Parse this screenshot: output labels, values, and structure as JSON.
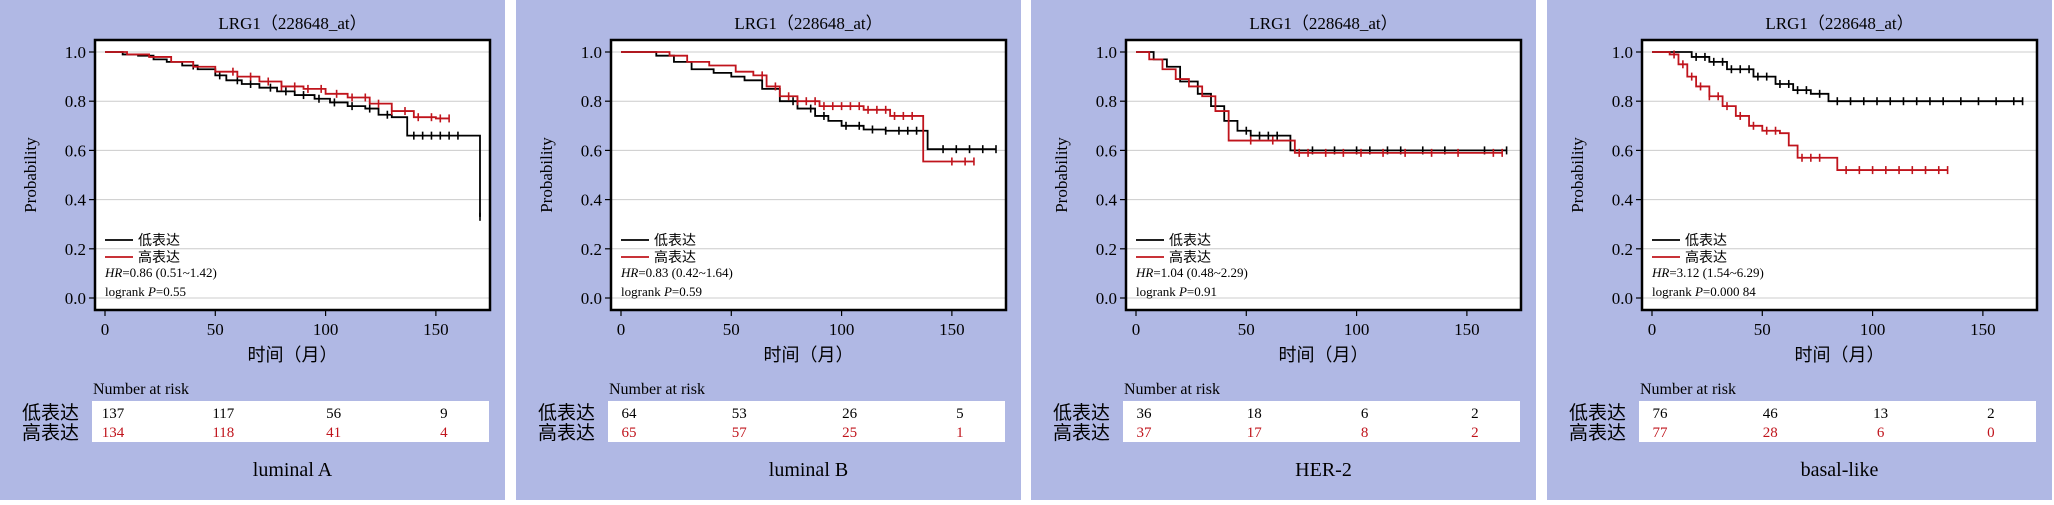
{
  "colors": {
    "panel_bg": "#b0b8e4",
    "low": "#000000",
    "high": "#c0141c",
    "grid": "#cccccc"
  },
  "labels": {
    "ylabel": "Probability",
    "xlabel": "时间（月）",
    "risk_title": "Number at risk",
    "low_group": "低表达",
    "high_group": "高表达",
    "logrank": "logrank"
  },
  "chart_data": [
    {
      "type": "line",
      "title": "LRG1（228648_at）",
      "subtype_label": "luminal A",
      "xlabel": "时间（月）",
      "ylabel": "Probability",
      "xlim": [
        0,
        170
      ],
      "ylim": [
        0,
        1.0
      ],
      "xticks": [
        0,
        50,
        100,
        150
      ],
      "yticks": [
        0.0,
        0.2,
        0.4,
        0.6,
        0.8,
        1.0
      ],
      "grid": true,
      "legend": "bottom-left",
      "stats": {
        "hr_label": "HR",
        "hr_text": "=0.86 (0.51~1.42)",
        "p_label": "P",
        "p_text": "=0.55"
      },
      "risk_times": [
        0,
        50,
        100,
        150
      ],
      "series": [
        {
          "name": "低表达",
          "color": "#000000",
          "points": [
            [
              0,
              1.0
            ],
            [
              8,
              0.99
            ],
            [
              15,
              0.985
            ],
            [
              22,
              0.97
            ],
            [
              28,
              0.96
            ],
            [
              35,
              0.945
            ],
            [
              42,
              0.93
            ],
            [
              50,
              0.905
            ],
            [
              55,
              0.885
            ],
            [
              62,
              0.87
            ],
            [
              70,
              0.855
            ],
            [
              78,
              0.84
            ],
            [
              86,
              0.825
            ],
            [
              95,
              0.81
            ],
            [
              102,
              0.795
            ],
            [
              110,
              0.78
            ],
            [
              118,
              0.77
            ],
            [
              124,
              0.745
            ],
            [
              130,
              0.735
            ],
            [
              137,
              0.66
            ],
            [
              150,
              0.66
            ],
            [
              164,
              0.66
            ],
            [
              170,
              0.66
            ],
            [
              170,
              0.33
            ]
          ],
          "censor_x": [
            40,
            52,
            60,
            66,
            75,
            82,
            90,
            97,
            104,
            112,
            120,
            128,
            140,
            144,
            148,
            152,
            156,
            160,
            170
          ]
        },
        {
          "name": "高表达",
          "color": "#c0141c",
          "points": [
            [
              0,
              1.0
            ],
            [
              10,
              0.99
            ],
            [
              20,
              0.98
            ],
            [
              30,
              0.96
            ],
            [
              40,
              0.94
            ],
            [
              50,
              0.92
            ],
            [
              60,
              0.9
            ],
            [
              70,
              0.88
            ],
            [
              80,
              0.86
            ],
            [
              90,
              0.85
            ],
            [
              100,
              0.83
            ],
            [
              110,
              0.815
            ],
            [
              120,
              0.79
            ],
            [
              130,
              0.76
            ],
            [
              140,
              0.735
            ],
            [
              150,
              0.73
            ],
            [
              156,
              0.73
            ]
          ],
          "censor_x": [
            58,
            66,
            74,
            80,
            86,
            92,
            98,
            105,
            112,
            118,
            124,
            130,
            136,
            142,
            148,
            152,
            156
          ]
        }
      ],
      "at_risk": {
        "low": [
          "137",
          "117",
          "56",
          "9"
        ],
        "high": [
          "134",
          "118",
          "41",
          "4"
        ]
      }
    },
    {
      "type": "line",
      "title": "LRG1（228648_at）",
      "subtype_label": "luminal B",
      "xlabel": "时间（月）",
      "ylabel": "Probability",
      "xlim": [
        0,
        170
      ],
      "ylim": [
        0,
        1.0
      ],
      "xticks": [
        0,
        50,
        100,
        150
      ],
      "yticks": [
        0.0,
        0.2,
        0.4,
        0.6,
        0.8,
        1.0
      ],
      "grid": true,
      "legend": "bottom-left",
      "stats": {
        "hr_label": "HR",
        "hr_text": "=0.83 (0.42~1.64)",
        "p_label": "P",
        "p_text": "=0.59"
      },
      "risk_times": [
        0,
        50,
        100,
        150
      ],
      "series": [
        {
          "name": "低表达",
          "color": "#000000",
          "points": [
            [
              0,
              1.0
            ],
            [
              12,
              1.0
            ],
            [
              16,
              0.985
            ],
            [
              24,
              0.96
            ],
            [
              32,
              0.93
            ],
            [
              42,
              0.915
            ],
            [
              50,
              0.9
            ],
            [
              56,
              0.885
            ],
            [
              64,
              0.85
            ],
            [
              72,
              0.8
            ],
            [
              80,
              0.77
            ],
            [
              88,
              0.74
            ],
            [
              94,
              0.72
            ],
            [
              100,
              0.7
            ],
            [
              110,
              0.685
            ],
            [
              120,
              0.68
            ],
            [
              138,
              0.68
            ],
            [
              139,
              0.605
            ],
            [
              150,
              0.605
            ],
            [
              170,
              0.605
            ]
          ],
          "censor_x": [
            78,
            86,
            92,
            102,
            108,
            114,
            120,
            126,
            130,
            134,
            146,
            152,
            158,
            164,
            170
          ]
        },
        {
          "name": "高表达",
          "color": "#c0141c",
          "points": [
            [
              0,
              1.0
            ],
            [
              18,
              1.0
            ],
            [
              22,
              0.985
            ],
            [
              30,
              0.96
            ],
            [
              40,
              0.945
            ],
            [
              52,
              0.92
            ],
            [
              60,
              0.905
            ],
            [
              66,
              0.86
            ],
            [
              72,
              0.82
            ],
            [
              80,
              0.8
            ],
            [
              90,
              0.78
            ],
            [
              110,
              0.765
            ],
            [
              122,
              0.74
            ],
            [
              136,
              0.74
            ],
            [
              137,
              0.555
            ],
            [
              160,
              0.555
            ]
          ],
          "censor_x": [
            64,
            70,
            76,
            80,
            84,
            88,
            92,
            96,
            100,
            104,
            108,
            112,
            116,
            120,
            124,
            128,
            132,
            150,
            156,
            160
          ]
        }
      ],
      "at_risk": {
        "low": [
          "64",
          "53",
          "26",
          "5"
        ],
        "high": [
          "65",
          "57",
          "25",
          "1"
        ]
      }
    },
    {
      "type": "line",
      "title": "LRG1（228648_at）",
      "subtype_label": "HER-2",
      "xlabel": "时间（月）",
      "ylabel": "Probability",
      "xlim": [
        0,
        170
      ],
      "ylim": [
        0,
        1.0
      ],
      "xticks": [
        0,
        50,
        100,
        150
      ],
      "yticks": [
        0.0,
        0.2,
        0.4,
        0.6,
        0.8,
        1.0
      ],
      "grid": true,
      "legend": "bottom-left",
      "stats": {
        "hr_label": "HR",
        "hr_text": "=1.04 (0.48~2.29)",
        "p_label": "P",
        "p_text": "=0.91"
      },
      "risk_times": [
        0,
        50,
        100,
        150
      ],
      "series": [
        {
          "name": "低表达",
          "color": "#000000",
          "points": [
            [
              0,
              1.0
            ],
            [
              5,
              1.0
            ],
            [
              8,
              0.97
            ],
            [
              14,
              0.94
            ],
            [
              20,
              0.88
            ],
            [
              28,
              0.83
            ],
            [
              34,
              0.78
            ],
            [
              40,
              0.72
            ],
            [
              46,
              0.68
            ],
            [
              52,
              0.66
            ],
            [
              68,
              0.66
            ],
            [
              70,
              0.6
            ],
            [
              168,
              0.6
            ]
          ],
          "censor_x": [
            50,
            56,
            60,
            64,
            80,
            90,
            100,
            106,
            114,
            120,
            130,
            140,
            158,
            168
          ]
        },
        {
          "name": "高表达",
          "color": "#c0141c",
          "points": [
            [
              0,
              1.0
            ],
            [
              6,
              0.97
            ],
            [
              12,
              0.93
            ],
            [
              18,
              0.89
            ],
            [
              24,
              0.86
            ],
            [
              30,
              0.82
            ],
            [
              36,
              0.76
            ],
            [
              42,
              0.64
            ],
            [
              70,
              0.64
            ],
            [
              72,
              0.59
            ],
            [
              166,
              0.59
            ]
          ],
          "censor_x": [
            52,
            62,
            74,
            78,
            86,
            94,
            102,
            112,
            122,
            134,
            146,
            162,
            166
          ]
        }
      ],
      "at_risk": {
        "low": [
          "36",
          "18",
          "6",
          "2"
        ],
        "high": [
          "37",
          "17",
          "8",
          "2"
        ]
      }
    },
    {
      "type": "line",
      "title": "LRG1（228648_at）",
      "subtype_label": "basal-like",
      "xlabel": "时间（月）",
      "ylabel": "Probability",
      "xlim": [
        0,
        170
      ],
      "ylim": [
        0,
        1.0
      ],
      "xticks": [
        0,
        50,
        100,
        150
      ],
      "yticks": [
        0.0,
        0.2,
        0.4,
        0.6,
        0.8,
        1.0
      ],
      "grid": true,
      "legend": "bottom-left",
      "stats": {
        "hr_label": "HR",
        "hr_text": "=3.12 (1.54~6.29)",
        "p_label": "P",
        "p_text": "=0.000 84"
      },
      "risk_times": [
        0,
        50,
        100,
        150
      ],
      "series": [
        {
          "name": "低表达",
          "color": "#000000",
          "points": [
            [
              0,
              1.0
            ],
            [
              14,
              1.0
            ],
            [
              18,
              0.98
            ],
            [
              26,
              0.96
            ],
            [
              34,
              0.93
            ],
            [
              46,
              0.9
            ],
            [
              56,
              0.87
            ],
            [
              64,
              0.845
            ],
            [
              72,
              0.83
            ],
            [
              80,
              0.8
            ],
            [
              168,
              0.8
            ]
          ],
          "censor_x": [
            20,
            24,
            28,
            32,
            36,
            40,
            44,
            48,
            52,
            58,
            62,
            66,
            70,
            76,
            84,
            90,
            96,
            102,
            108,
            114,
            120,
            126,
            132,
            140,
            148,
            156,
            164,
            168
          ]
        },
        {
          "name": "高表达",
          "color": "#c0141c",
          "points": [
            [
              0,
              1.0
            ],
            [
              8,
              0.99
            ],
            [
              12,
              0.95
            ],
            [
              16,
              0.9
            ],
            [
              20,
              0.86
            ],
            [
              26,
              0.82
            ],
            [
              32,
              0.78
            ],
            [
              38,
              0.74
            ],
            [
              44,
              0.7
            ],
            [
              50,
              0.68
            ],
            [
              58,
              0.67
            ],
            [
              62,
              0.62
            ],
            [
              66,
              0.57
            ],
            [
              80,
              0.57
            ],
            [
              84,
              0.52
            ],
            [
              134,
              0.52
            ]
          ],
          "censor_x": [
            10,
            14,
            18,
            22,
            26,
            30,
            34,
            40,
            46,
            52,
            56,
            68,
            72,
            76,
            88,
            94,
            100,
            106,
            112,
            118,
            124,
            130,
            134
          ]
        }
      ],
      "at_risk": {
        "low": [
          "76",
          "46",
          "13",
          "2"
        ],
        "high": [
          "77",
          "28",
          "6",
          "0"
        ]
      }
    }
  ]
}
